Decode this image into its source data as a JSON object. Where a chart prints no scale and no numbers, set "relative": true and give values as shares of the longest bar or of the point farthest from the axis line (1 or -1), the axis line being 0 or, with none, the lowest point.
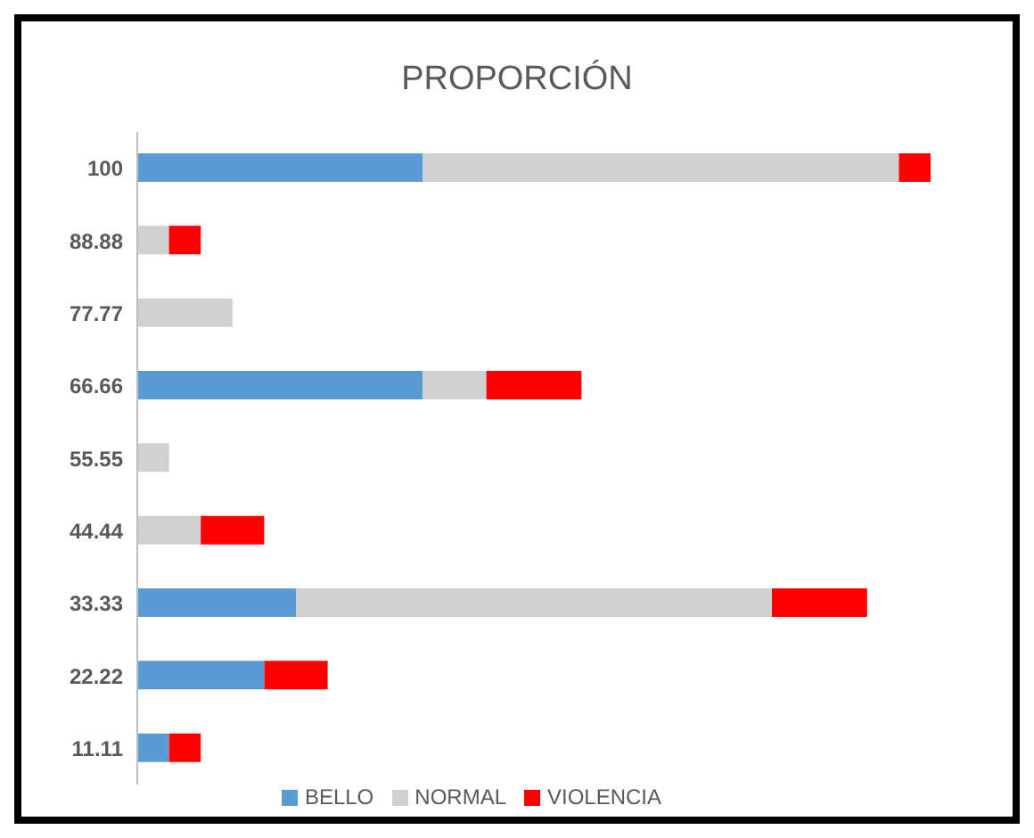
{
  "chart_data": {
    "type": "bar",
    "title": "PROPORCIÓN",
    "orientation": "horizontal",
    "stacked": true,
    "relative": true,
    "legend": "bottom",
    "grid": false,
    "categories": [
      "100",
      "88.88",
      "77.77",
      "66.66",
      "55.55",
      "44.44",
      "33.33",
      "22.22",
      "11.11"
    ],
    "series": [
      {
        "name": "BELLO",
        "color": "#5b9bd5",
        "values": [
          0.36,
          0,
          0,
          0.36,
          0,
          0,
          0.2,
          0.16,
          0.04
        ]
      },
      {
        "name": "NORMAL",
        "color": "#d0d0d0",
        "values": [
          0.6,
          0.04,
          0.12,
          0.08,
          0.04,
          0.08,
          0.6,
          0,
          0
        ]
      },
      {
        "name": "VIOLENCIA",
        "color": "#ff0000",
        "values": [
          0.04,
          0.04,
          0,
          0.12,
          0,
          0.08,
          0.12,
          0.08,
          0.04
        ]
      }
    ]
  }
}
